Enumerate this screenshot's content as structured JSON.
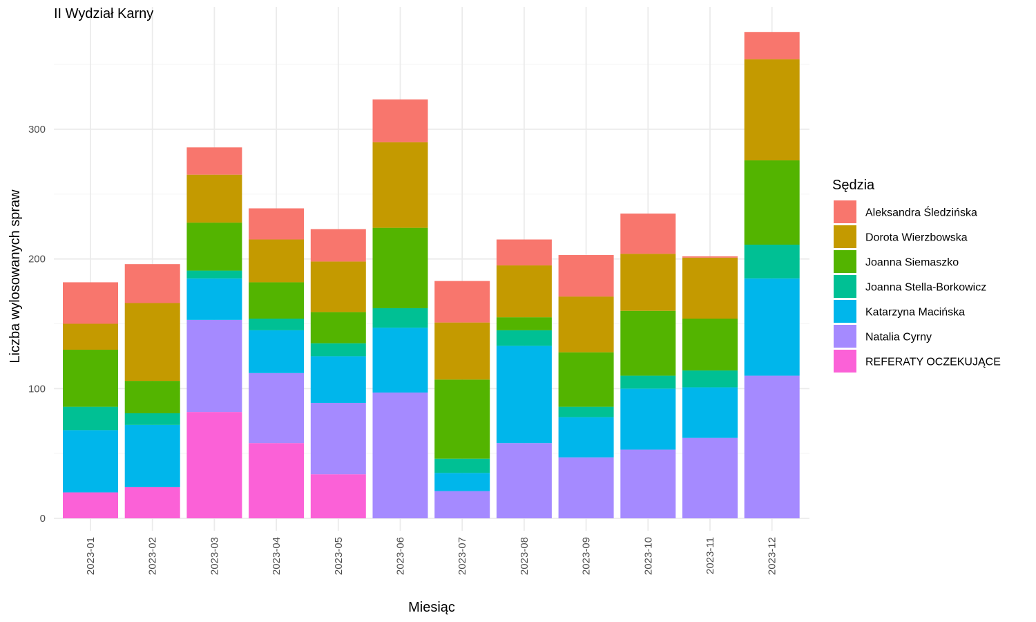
{
  "chart_data": {
    "type": "bar",
    "stacked": true,
    "title": "II Wydział Karny",
    "xlabel": "Miesiąc",
    "ylabel": "Liczba wylosowanych spraw",
    "ylim": [
      0,
      380
    ],
    "yticks": [
      0,
      100,
      200,
      300
    ],
    "grid": true,
    "legend": {
      "title": "Sędzia",
      "position": "right"
    },
    "categories": [
      "2023-01",
      "2023-02",
      "2023-03",
      "2023-04",
      "2023-05",
      "2023-06",
      "2023-07",
      "2023-08",
      "2023-09",
      "2023-10",
      "2023-11",
      "2023-12"
    ],
    "series": [
      {
        "name": "Aleksandra Śledzińska",
        "color": "#F8766D",
        "values": [
          32,
          30,
          21,
          24,
          25,
          33,
          32,
          20,
          32,
          31,
          1,
          21
        ]
      },
      {
        "name": "Dorota Wierzbowska",
        "color": "#C49A00",
        "values": [
          20,
          60,
          37,
          33,
          39,
          66,
          44,
          40,
          43,
          44,
          47,
          78
        ]
      },
      {
        "name": "Joanna Siemaszko",
        "color": "#53B400",
        "values": [
          44,
          25,
          37,
          28,
          24,
          62,
          61,
          10,
          42,
          50,
          40,
          65
        ]
      },
      {
        "name": "Joanna Stella-Borkowicz",
        "color": "#00C094",
        "values": [
          18,
          9,
          6,
          9,
          10,
          15,
          11,
          12,
          8,
          10,
          13,
          26
        ]
      },
      {
        "name": "Katarzyna Macińska",
        "color": "#00B6EB",
        "values": [
          48,
          48,
          32,
          33,
          36,
          50,
          14,
          75,
          31,
          47,
          39,
          75
        ]
      },
      {
        "name": "Natalia Cyrny",
        "color": "#A58AFF",
        "values": [
          0,
          0,
          71,
          54,
          55,
          97,
          21,
          58,
          47,
          53,
          62,
          110
        ]
      },
      {
        "name": "REFERATY OCZEKUJĄCE",
        "color": "#FB61D7",
        "values": [
          20,
          24,
          82,
          58,
          34,
          0,
          0,
          0,
          0,
          0,
          0,
          0
        ]
      }
    ]
  }
}
